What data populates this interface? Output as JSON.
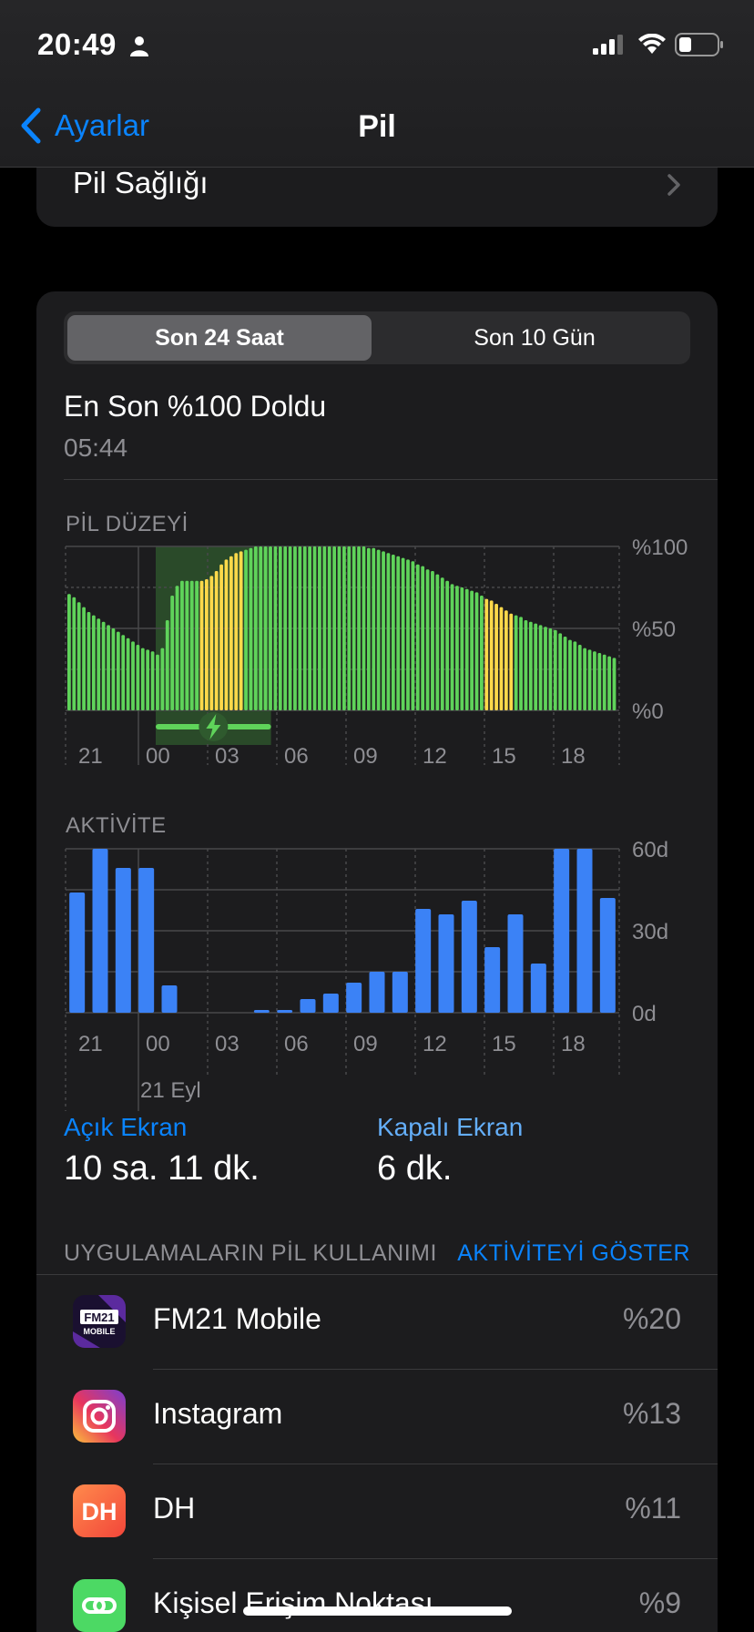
{
  "status": {
    "time": "20:49"
  },
  "nav": {
    "back_label": "Ayarlar",
    "title": "Pil"
  },
  "health": {
    "label": "Pil Sağlığı"
  },
  "segments": {
    "active": "Son 24 Saat",
    "inactive": "Son 10 Gün"
  },
  "last_charge": {
    "title": "En Son %100 Doldu",
    "time": "05:44"
  },
  "battery_chart_title": "PİL DÜZEYİ",
  "activity_chart_title": "AKTİVİTE",
  "colors": {
    "accent": "#0a84ff",
    "green": "#5fd35a",
    "yellow": "#fcd94a",
    "bar_blue": "#3b82f6"
  },
  "chart_data": [
    {
      "type": "bar",
      "title": "PİL DÜZEYİ",
      "y_tick_labels": [
        "%100",
        "%50",
        "%0"
      ],
      "x_tick_labels": [
        "21",
        "00",
        "03",
        "06",
        "09",
        "12",
        "15",
        "18"
      ],
      "ylim": [
        0,
        100
      ],
      "values": [
        71,
        69,
        66,
        63,
        60,
        58,
        56,
        54,
        52,
        50,
        48,
        46,
        44,
        42,
        40,
        38,
        37,
        36,
        34,
        38,
        55,
        70,
        76,
        79,
        79,
        79,
        79,
        79,
        80,
        82,
        85,
        89,
        92,
        94,
        96,
        97,
        98,
        99,
        100,
        100,
        100,
        100,
        100,
        100,
        100,
        100,
        100,
        100,
        100,
        100,
        100,
        100,
        100,
        100,
        100,
        100,
        100,
        100,
        100,
        100,
        100,
        99,
        99,
        98,
        97,
        96,
        95,
        94,
        93,
        92,
        91,
        89,
        88,
        86,
        85,
        83,
        81,
        79,
        77,
        76,
        75,
        74,
        73,
        72,
        70,
        68,
        67,
        65,
        63,
        61,
        59,
        58,
        57,
        55,
        54,
        53,
        52,
        51,
        50,
        49,
        47,
        45,
        43,
        42,
        40,
        38,
        37,
        36,
        35,
        34,
        33,
        32
      ],
      "yellow_indices": [
        27,
        28,
        29,
        30,
        31,
        32,
        33,
        34,
        35,
        85,
        86,
        87,
        88,
        89,
        90,
        114,
        115,
        116,
        117,
        118,
        119,
        120,
        121,
        122,
        123,
        124
      ],
      "charging_range_hours": [
        0.75,
        5.75
      ]
    },
    {
      "type": "bar",
      "title": "AKTİVİTE",
      "y_tick_labels": [
        "60d",
        "30d",
        "0d"
      ],
      "x_tick_labels": [
        "21",
        "00",
        "03",
        "06",
        "09",
        "12",
        "15",
        "18"
      ],
      "date_label": "21 Eyl",
      "ylim": [
        0,
        60
      ],
      "unit": "minutes",
      "values": [
        44,
        60,
        53,
        53,
        10,
        0,
        0,
        0,
        1,
        1,
        5,
        7,
        11,
        15,
        15,
        38,
        36,
        41,
        24,
        36,
        18,
        60,
        60,
        42
      ]
    }
  ],
  "screen_stats": {
    "on_label": "Açık Ekran",
    "on_value": "10 sa. 11 dk.",
    "off_label": "Kapalı Ekran",
    "off_value": "6 dk."
  },
  "usage": {
    "header": "UYGULAMALARIN PİL KULLANIMI",
    "action": "AKTİVİTEYİ GÖSTER",
    "apps": [
      {
        "name": "FM21 Mobile",
        "percent": "%20",
        "icon": "fm21-icon"
      },
      {
        "name": "Instagram",
        "percent": "%13",
        "icon": "instagram-icon"
      },
      {
        "name": "DH",
        "percent": "%11",
        "icon": "dh-icon"
      },
      {
        "name": "Kişisel Erişim Noktası",
        "percent": "%9",
        "icon": "hotspot-icon"
      }
    ]
  }
}
